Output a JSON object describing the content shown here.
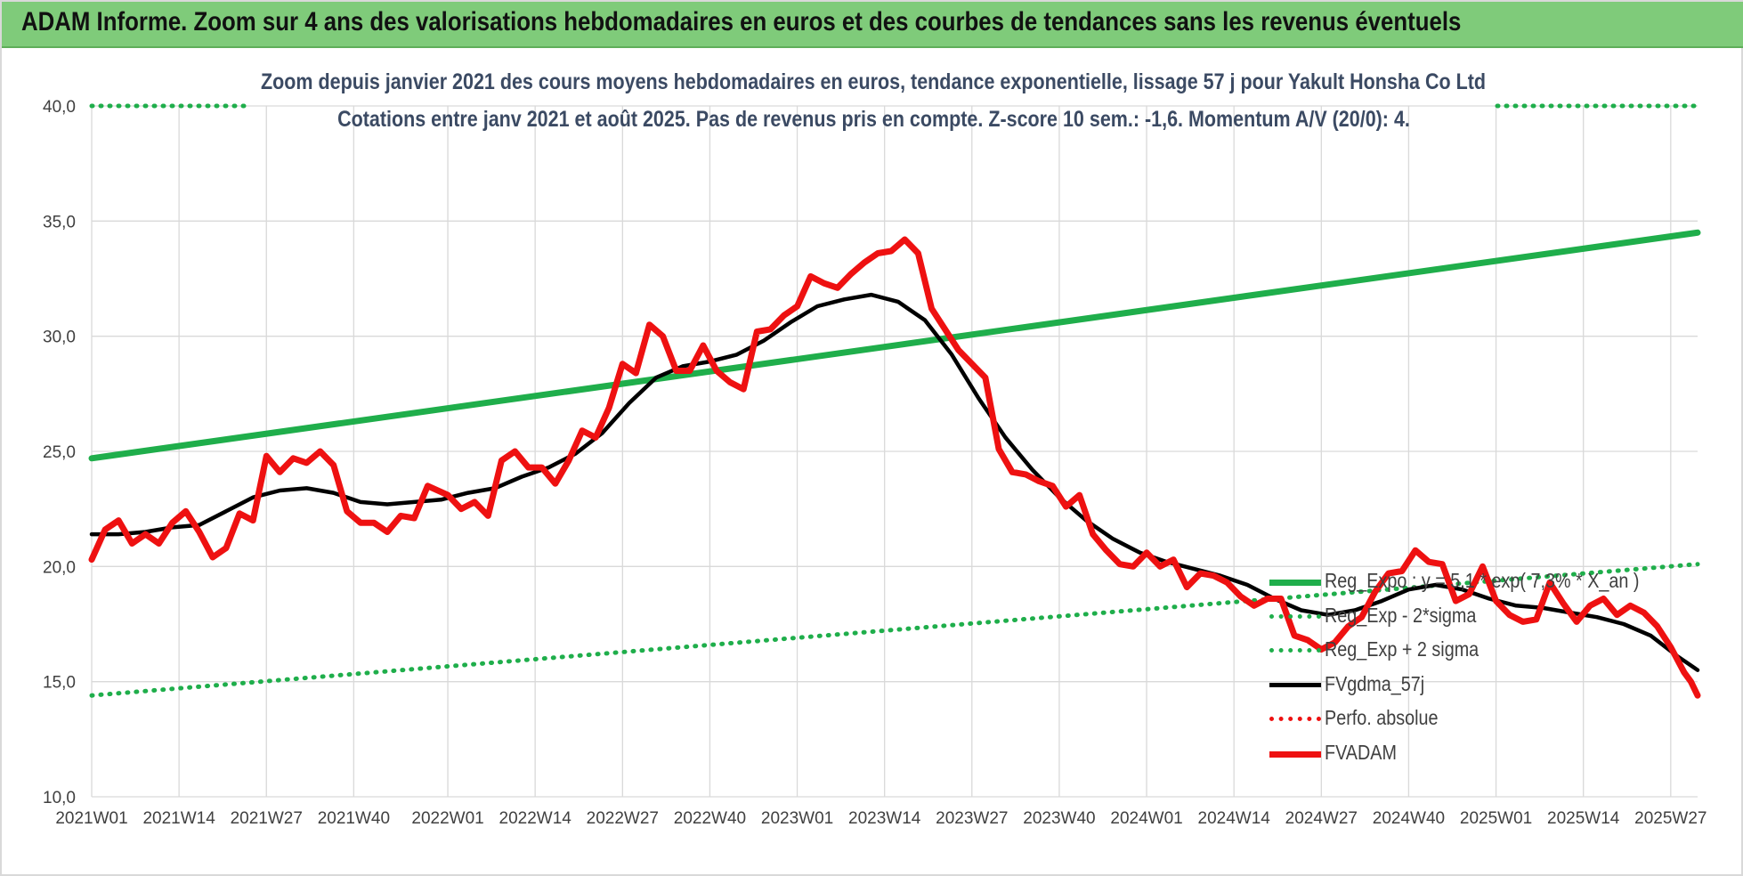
{
  "banner": {
    "title": "ADAM Informe. Zoom sur 4 ans des valorisations hebdomadaires en euros et des courbes de tendances sans les revenus éventuels"
  },
  "subtitle": {
    "line1": "Zoom depuis janvier 2021 des cours moyens hebdomadaires en euros, tendance exponentielle, lissage 57 j pour Yakult Honsha Co Ltd",
    "line2": "Cotations entre janv 2021 et août 2025.  Pas de revenus pris en compte. Z-score 10 sem.: -1,6. Momentum A/V (20/0): 4."
  },
  "colors": {
    "background": "#ffffff",
    "banner": "#7fcb7a",
    "trend": "#1fae4b",
    "trend_band": "#1fae4b",
    "smoothed": "#000000",
    "price": "#ee1111",
    "perf": "#ee1111",
    "grid": "#d9d9d9",
    "axis_text": "#404040"
  },
  "chart_data": {
    "type": "line",
    "x_unit": "week",
    "x_range": [
      "2021W01",
      "2025W31"
    ],
    "x_tick_labels": [
      "2021W01",
      "2021W14",
      "2021W27",
      "2021W40",
      "2022W01",
      "2022W14",
      "2022W27",
      "2022W40",
      "2023W01",
      "2023W14",
      "2023W27",
      "2023W40",
      "2024W01",
      "2024W14",
      "2024W27",
      "2024W40",
      "2025W01",
      "2025W14",
      "2025W27"
    ],
    "ylim": [
      10,
      40
    ],
    "y_ticks": [
      10,
      15,
      20,
      25,
      30,
      35,
      40
    ],
    "y_tick_labels": [
      "10,0",
      "15,0",
      "20,0",
      "25,0",
      "30,0",
      "35,0",
      "40,0"
    ],
    "grid": true,
    "legend_position": "bottom-right",
    "series": [
      {
        "name": "Reg_Expo : y = 5,1 * exp( 7,3% * X_an )",
        "style": "solid-thick",
        "color": "#1fae4b",
        "points": [
          [
            "2021W01",
            24.7
          ],
          [
            "2025W31",
            34.5
          ]
        ]
      },
      {
        "name": "Reg_Exp - 2*sigma",
        "style": "dotted",
        "color": "#1fae4b",
        "points": [
          [
            "2021W01",
            14.4
          ],
          [
            "2025W31",
            20.1
          ]
        ]
      },
      {
        "name": "Reg_Exp + 2 sigma",
        "style": "dotted",
        "color": "#1fae4b",
        "points": [
          [
            "2021W01",
            40.0
          ],
          [
            "2025W31",
            40.0
          ]
        ]
      },
      {
        "name": "FVgdma_57j",
        "style": "solid",
        "color": "#000000",
        "points": [
          [
            "2021W01",
            21.4
          ],
          [
            "2021W05",
            21.4
          ],
          [
            "2021W09",
            21.5
          ],
          [
            "2021W13",
            21.7
          ],
          [
            "2021W17",
            21.8
          ],
          [
            "2021W21",
            22.4
          ],
          [
            "2021W25",
            23.0
          ],
          [
            "2021W29",
            23.3
          ],
          [
            "2021W33",
            23.4
          ],
          [
            "2021W37",
            23.2
          ],
          [
            "2021W41",
            22.8
          ],
          [
            "2021W45",
            22.7
          ],
          [
            "2021W49",
            22.8
          ],
          [
            "2021W53",
            22.9
          ],
          [
            "2022W04",
            23.2
          ],
          [
            "2022W08",
            23.4
          ],
          [
            "2022W12",
            23.9
          ],
          [
            "2022W16",
            24.3
          ],
          [
            "2022W20",
            24.9
          ],
          [
            "2022W24",
            25.8
          ],
          [
            "2022W28",
            27.1
          ],
          [
            "2022W32",
            28.2
          ],
          [
            "2022W36",
            28.7
          ],
          [
            "2022W40",
            28.9
          ],
          [
            "2022W44",
            29.2
          ],
          [
            "2022W48",
            29.8
          ],
          [
            "2022W52",
            30.6
          ],
          [
            "2023W04",
            31.3
          ],
          [
            "2023W08",
            31.6
          ],
          [
            "2023W12",
            31.8
          ],
          [
            "2023W16",
            31.5
          ],
          [
            "2023W20",
            30.7
          ],
          [
            "2023W24",
            29.2
          ],
          [
            "2023W28",
            27.3
          ],
          [
            "2023W32",
            25.6
          ],
          [
            "2023W36",
            24.2
          ],
          [
            "2023W40",
            23.0
          ],
          [
            "2023W44",
            22.0
          ],
          [
            "2023W48",
            21.2
          ],
          [
            "2023W52",
            20.6
          ],
          [
            "2024W04",
            20.2
          ],
          [
            "2024W08",
            19.9
          ],
          [
            "2024W12",
            19.6
          ],
          [
            "2024W16",
            19.2
          ],
          [
            "2024W20",
            18.6
          ],
          [
            "2024W24",
            18.1
          ],
          [
            "2024W28",
            17.9
          ],
          [
            "2024W32",
            18.1
          ],
          [
            "2024W36",
            18.5
          ],
          [
            "2024W40",
            19.0
          ],
          [
            "2024W44",
            19.2
          ],
          [
            "2024W48",
            19.0
          ],
          [
            "2024W52",
            18.6
          ],
          [
            "2025W04",
            18.3
          ],
          [
            "2025W08",
            18.2
          ],
          [
            "2025W12",
            18.0
          ],
          [
            "2025W16",
            17.8
          ],
          [
            "2025W20",
            17.5
          ],
          [
            "2025W24",
            17.0
          ],
          [
            "2025W28",
            16.1
          ],
          [
            "2025W31",
            15.5
          ]
        ]
      },
      {
        "name": "Perfo. absolue",
        "style": "dotted",
        "color": "#ee1111",
        "points": []
      },
      {
        "name": "FVADAM",
        "style": "solid-thick",
        "color": "#ee1111",
        "points": [
          [
            "2021W01",
            20.3
          ],
          [
            "2021W03",
            21.6
          ],
          [
            "2021W05",
            22.0
          ],
          [
            "2021W07",
            21.0
          ],
          [
            "2021W09",
            21.4
          ],
          [
            "2021W11",
            21.0
          ],
          [
            "2021W13",
            21.9
          ],
          [
            "2021W15",
            22.4
          ],
          [
            "2021W17",
            21.5
          ],
          [
            "2021W19",
            20.4
          ],
          [
            "2021W21",
            20.8
          ],
          [
            "2021W23",
            22.3
          ],
          [
            "2021W25",
            22.0
          ],
          [
            "2021W27",
            24.8
          ],
          [
            "2021W29",
            24.1
          ],
          [
            "2021W31",
            24.7
          ],
          [
            "2021W33",
            24.5
          ],
          [
            "2021W35",
            25.0
          ],
          [
            "2021W37",
            24.4
          ],
          [
            "2021W39",
            22.4
          ],
          [
            "2021W41",
            21.9
          ],
          [
            "2021W43",
            21.9
          ],
          [
            "2021W45",
            21.5
          ],
          [
            "2021W47",
            22.2
          ],
          [
            "2021W49",
            22.1
          ],
          [
            "2021W51",
            23.5
          ],
          [
            "2022W01",
            23.1
          ],
          [
            "2022W03",
            22.5
          ],
          [
            "2022W05",
            22.8
          ],
          [
            "2022W07",
            22.2
          ],
          [
            "2022W09",
            24.6
          ],
          [
            "2022W11",
            25.0
          ],
          [
            "2022W13",
            24.3
          ],
          [
            "2022W15",
            24.3
          ],
          [
            "2022W17",
            23.6
          ],
          [
            "2022W19",
            24.6
          ],
          [
            "2022W21",
            25.9
          ],
          [
            "2022W23",
            25.6
          ],
          [
            "2022W25",
            26.9
          ],
          [
            "2022W27",
            28.8
          ],
          [
            "2022W29",
            28.4
          ],
          [
            "2022W31",
            30.5
          ],
          [
            "2022W33",
            30.0
          ],
          [
            "2022W35",
            28.5
          ],
          [
            "2022W37",
            28.5
          ],
          [
            "2022W39",
            29.6
          ],
          [
            "2022W41",
            28.5
          ],
          [
            "2022W43",
            28.0
          ],
          [
            "2022W45",
            27.7
          ],
          [
            "2022W47",
            30.2
          ],
          [
            "2022W49",
            30.3
          ],
          [
            "2022W51",
            30.9
          ],
          [
            "2023W01",
            31.3
          ],
          [
            "2023W03",
            32.6
          ],
          [
            "2023W05",
            32.3
          ],
          [
            "2023W07",
            32.1
          ],
          [
            "2023W09",
            32.7
          ],
          [
            "2023W11",
            33.2
          ],
          [
            "2023W13",
            33.6
          ],
          [
            "2023W15",
            33.7
          ],
          [
            "2023W17",
            34.2
          ],
          [
            "2023W19",
            33.6
          ],
          [
            "2023W21",
            31.2
          ],
          [
            "2023W23",
            30.3
          ],
          [
            "2023W25",
            29.4
          ],
          [
            "2023W27",
            28.8
          ],
          [
            "2023W29",
            28.2
          ],
          [
            "2023W31",
            25.1
          ],
          [
            "2023W33",
            24.1
          ],
          [
            "2023W35",
            24.0
          ],
          [
            "2023W37",
            23.7
          ],
          [
            "2023W39",
            23.5
          ],
          [
            "2023W41",
            22.6
          ],
          [
            "2023W43",
            23.1
          ],
          [
            "2023W45",
            21.4
          ],
          [
            "2023W47",
            20.7
          ],
          [
            "2023W49",
            20.1
          ],
          [
            "2023W51",
            20.0
          ],
          [
            "2024W01",
            20.6
          ],
          [
            "2024W03",
            20.0
          ],
          [
            "2024W05",
            20.3
          ],
          [
            "2024W07",
            19.1
          ],
          [
            "2024W09",
            19.7
          ],
          [
            "2024W11",
            19.6
          ],
          [
            "2024W13",
            19.3
          ],
          [
            "2024W15",
            18.7
          ],
          [
            "2024W17",
            18.3
          ],
          [
            "2024W19",
            18.6
          ],
          [
            "2024W21",
            18.6
          ],
          [
            "2024W23",
            17.0
          ],
          [
            "2024W25",
            16.8
          ],
          [
            "2024W27",
            16.4
          ],
          [
            "2024W29",
            16.7
          ],
          [
            "2024W31",
            17.4
          ],
          [
            "2024W33",
            17.8
          ],
          [
            "2024W35",
            18.9
          ],
          [
            "2024W37",
            19.7
          ],
          [
            "2024W39",
            19.8
          ],
          [
            "2024W41",
            20.7
          ],
          [
            "2024W43",
            20.2
          ],
          [
            "2024W45",
            20.1
          ],
          [
            "2024W47",
            18.5
          ],
          [
            "2024W49",
            18.8
          ],
          [
            "2024W51",
            20.0
          ],
          [
            "2025W01",
            18.5
          ],
          [
            "2025W03",
            17.9
          ],
          [
            "2025W05",
            17.6
          ],
          [
            "2025W07",
            17.7
          ],
          [
            "2025W09",
            19.3
          ],
          [
            "2025W11",
            18.4
          ],
          [
            "2025W13",
            17.6
          ],
          [
            "2025W15",
            18.3
          ],
          [
            "2025W17",
            18.6
          ],
          [
            "2025W19",
            17.9
          ],
          [
            "2025W21",
            18.3
          ],
          [
            "2025W23",
            18.0
          ],
          [
            "2025W25",
            17.4
          ],
          [
            "2025W27",
            16.5
          ],
          [
            "2025W29",
            15.4
          ],
          [
            "2025W30",
            15.0
          ],
          [
            "2025W31",
            14.4
          ]
        ]
      }
    ]
  },
  "legend": {
    "items": [
      {
        "label": "Reg_Expo : y = 5,1 * exp( 7,3% * X_an )",
        "style": "solid-thick",
        "color": "#1fae4b"
      },
      {
        "label": "Reg_Exp - 2*sigma",
        "style": "dotted",
        "color": "#1fae4b"
      },
      {
        "label": "Reg_Exp + 2 sigma",
        "style": "dotted",
        "color": "#1fae4b"
      },
      {
        "label": "FVgdma_57j",
        "style": "solid",
        "color": "#000000"
      },
      {
        "label": "Perfo. absolue",
        "style": "dotted",
        "color": "#ee1111"
      },
      {
        "label": "FVADAM",
        "style": "solid-thick",
        "color": "#ee1111"
      }
    ]
  }
}
